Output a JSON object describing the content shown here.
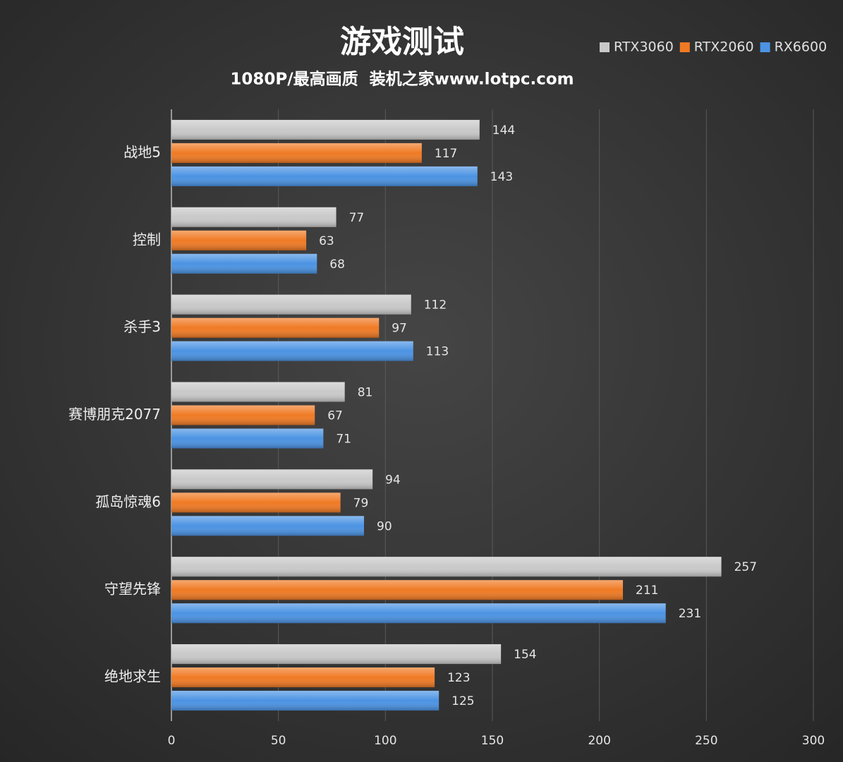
{
  "chart_data": {
    "type": "bar",
    "orientation": "horizontal",
    "title": "游戏测试",
    "subtitle": "1080P/最高画质  装机之家www.lotpc.com",
    "categories": [
      "战地5",
      "控制",
      "杀手3",
      "赛博朋克2077",
      "孤岛惊魂6",
      "守望先锋",
      "绝地求生"
    ],
    "series": [
      {
        "name": "RTX3060",
        "color": "#c9c9c9",
        "values": [
          144,
          77,
          112,
          81,
          94,
          257,
          154
        ]
      },
      {
        "name": "RTX2060",
        "color": "#f07a24",
        "values": [
          117,
          63,
          97,
          67,
          79,
          211,
          123
        ]
      },
      {
        "name": "RX6600",
        "color": "#4b93e3",
        "values": [
          143,
          68,
          113,
          71,
          90,
          231,
          125
        ]
      }
    ],
    "xlim": [
      0,
      300
    ],
    "xticks": [
      0,
      50,
      100,
      150,
      200,
      250,
      300
    ],
    "grid": true,
    "legend": "top-right"
  }
}
